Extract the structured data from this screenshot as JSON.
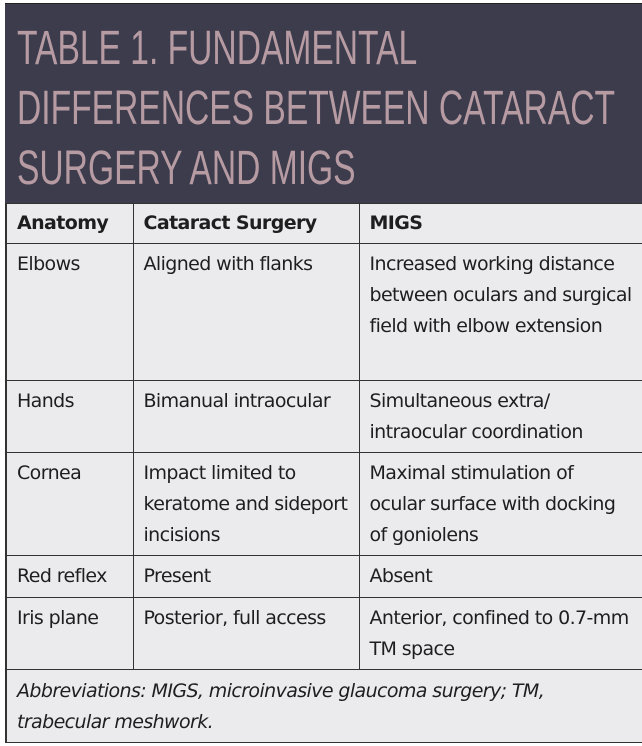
{
  "title": {
    "lines": [
      "TABLE 1.  FUNDAMENTAL",
      "DIFFERENCES BETWEEN CATARACT",
      "SURGERY AND MIGS"
    ]
  },
  "table": {
    "headers": [
      "Anatomy",
      "Cataract Surgery",
      "MIGS"
    ],
    "rows": [
      [
        "Elbows",
        "Aligned with flanks",
        "Increased working distance between oculars and surgical field with elbow extension"
      ],
      [
        "Hands",
        "Bimanual intraocular",
        "Simultaneous extra/ intraocular coordination"
      ],
      [
        "Cornea",
        "Impact limited to keratome and sideport incisions",
        "Maximal stimulation of ocular surface with docking of goniolens"
      ],
      [
        "Red reflex",
        "Present",
        "Absent"
      ],
      [
        "Iris plane",
        "Posterior, full access",
        "Anterior, confined to 0.7-mm TM space"
      ]
    ],
    "footnote": "Abbreviations: MIGS, microinvasive glaucoma surgery; TM, trabecular meshwork."
  },
  "colors": {
    "title_bg": "#3d3c4d",
    "title_text": "#b79ba3",
    "table_bg": "#ebeaed"
  }
}
